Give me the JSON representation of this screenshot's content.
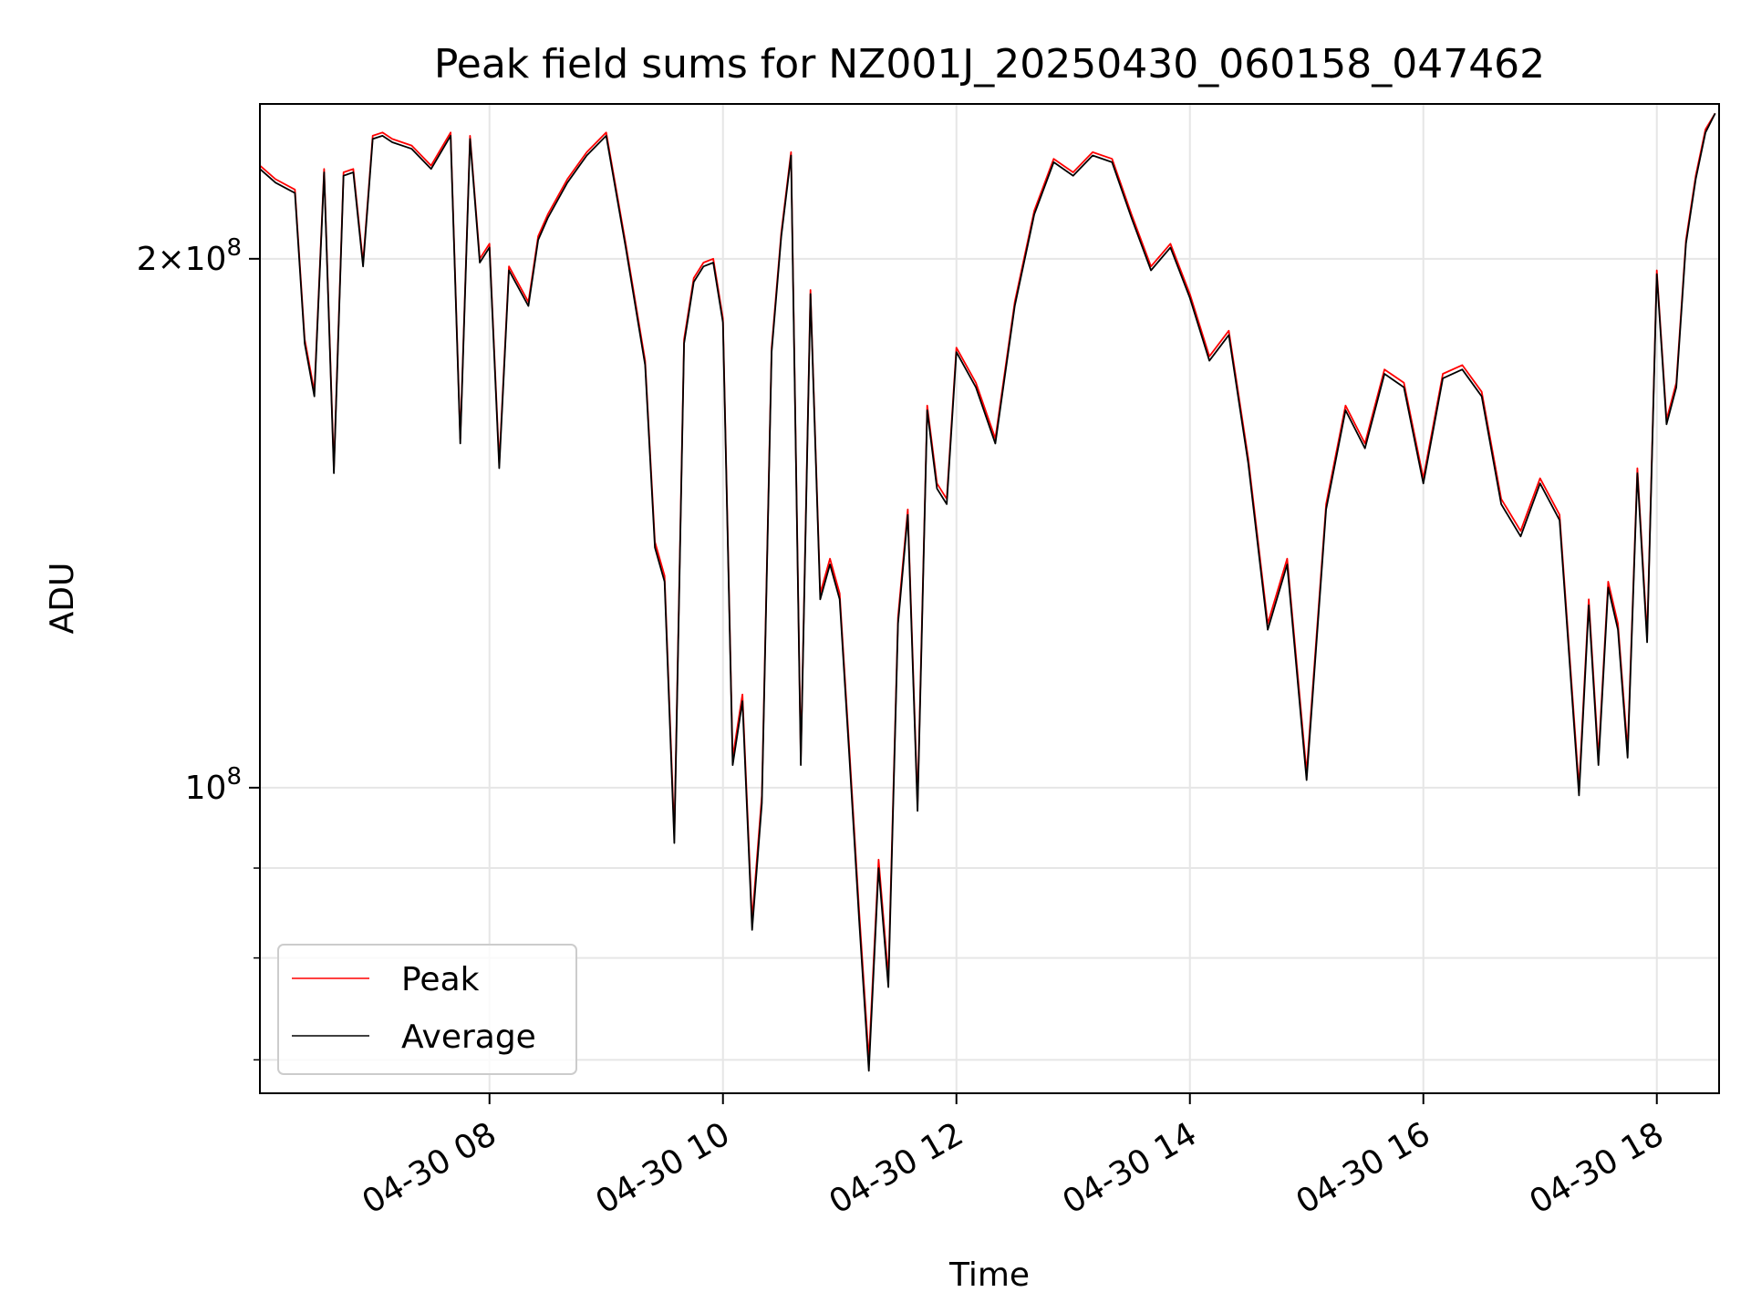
{
  "chart_data": {
    "type": "line",
    "title": "Peak field sums for NZ001J_20250430_060158_047462",
    "xlabel": "Time",
    "ylabel": "ADU",
    "yscale": "log",
    "ylim": [
      67000000,
      245000000
    ],
    "xlim": [
      "04-30 06:02",
      "04-30 18:32"
    ],
    "x_ticks": [
      "04-30 08",
      "04-30 10",
      "04-30 12",
      "04-30 14",
      "04-30 16",
      "04-30 18"
    ],
    "y_ticks": [
      {
        "label_base": "10",
        "label_exp": "8",
        "value": 100000000
      },
      {
        "label_base": "2×10",
        "label_exp": "8",
        "value": 200000000
      }
    ],
    "grid": true,
    "legend": {
      "placement": "lower-left",
      "entries": [
        "Peak",
        "Average"
      ]
    },
    "series": [
      {
        "name": "Peak",
        "color": "#ff0000",
        "x": [
          "04-30 06:02",
          "04-30 06:10",
          "04-30 06:20",
          "04-30 06:25",
          "04-30 06:30",
          "04-30 06:35",
          "04-30 06:40",
          "04-30 06:45",
          "04-30 06:50",
          "04-30 06:55",
          "04-30 07:00",
          "04-30 07:05",
          "04-30 07:10",
          "04-30 07:20",
          "04-30 07:30",
          "04-30 07:40",
          "04-30 07:45",
          "04-30 07:50",
          "04-30 07:55",
          "04-30 08:00",
          "04-30 08:05",
          "04-30 08:10",
          "04-30 08:20",
          "04-30 08:25",
          "04-30 08:30",
          "04-30 08:40",
          "04-30 08:50",
          "04-30 09:00",
          "04-30 09:10",
          "04-30 09:20",
          "04-30 09:25",
          "04-30 09:30",
          "04-30 09:35",
          "04-30 09:40",
          "04-30 09:45",
          "04-30 09:50",
          "04-30 09:55",
          "04-30 10:00",
          "04-30 10:05",
          "04-30 10:10",
          "04-30 10:15",
          "04-30 10:20",
          "04-30 10:25",
          "04-30 10:30",
          "04-30 10:35",
          "04-30 10:40",
          "04-30 10:45",
          "04-30 10:50",
          "04-30 10:55",
          "04-30 11:00",
          "04-30 11:05",
          "04-30 11:10",
          "04-30 11:15",
          "04-30 11:20",
          "04-30 11:25",
          "04-30 11:30",
          "04-30 11:35",
          "04-30 11:40",
          "04-30 11:45",
          "04-30 11:50",
          "04-30 11:55",
          "04-30 12:00",
          "04-30 12:10",
          "04-30 12:20",
          "04-30 12:30",
          "04-30 12:40",
          "04-30 12:50",
          "04-30 13:00",
          "04-30 13:10",
          "04-30 13:20",
          "04-30 13:30",
          "04-30 13:40",
          "04-30 13:50",
          "04-30 14:00",
          "04-30 14:10",
          "04-30 14:20",
          "04-30 14:30",
          "04-30 14:40",
          "04-30 14:50",
          "04-30 15:00",
          "04-30 15:10",
          "04-30 15:20",
          "04-30 15:30",
          "04-30 15:40",
          "04-30 15:50",
          "04-30 16:00",
          "04-30 16:10",
          "04-30 16:20",
          "04-30 16:30",
          "04-30 16:40",
          "04-30 16:50",
          "04-30 17:00",
          "04-30 17:10",
          "04-30 17:20",
          "04-30 17:25",
          "04-30 17:30",
          "04-30 17:35",
          "04-30 17:40",
          "04-30 17:45",
          "04-30 17:50",
          "04-30 17:55",
          "04-30 18:00",
          "04-30 18:05",
          "04-30 18:10",
          "04-30 18:15",
          "04-30 18:20",
          "04-30 18:25",
          "04-30 18:30"
        ],
        "y": [
          226000000,
          222000000,
          219000000,
          180000000,
          168000000,
          225000000,
          152000000,
          224000000,
          225000000,
          199000000,
          235000000,
          236000000,
          234000000,
          232000000,
          226000000,
          236000000,
          158000000,
          235000000,
          200000000,
          204000000,
          153000000,
          198000000,
          189000000,
          206000000,
          212000000,
          222000000,
          230000000,
          236000000,
          204000000,
          175000000,
          138000000,
          132000000,
          94000000,
          180000000,
          195000000,
          199000000,
          200000000,
          185000000,
          104000000,
          113000000,
          84000000,
          99000000,
          178000000,
          207000000,
          230000000,
          104000000,
          192000000,
          129000000,
          135000000,
          129000000,
          105000000,
          85000000,
          70000000,
          91000000,
          78000000,
          125000000,
          144000000,
          98000000,
          165000000,
          149000000,
          146000000,
          178000000,
          170000000,
          158000000,
          189000000,
          213000000,
          228000000,
          224000000,
          230000000,
          228000000,
          212000000,
          198000000,
          204000000,
          191000000,
          176000000,
          182000000,
          154000000,
          124000000,
          135000000,
          102000000,
          145000000,
          165000000,
          157000000,
          173000000,
          170000000,
          150000000,
          172000000,
          174000000,
          168000000,
          146000000,
          140000000,
          150000000,
          143000000,
          100000000,
          128000000,
          104000000,
          131000000,
          124000000,
          105000000,
          152000000,
          122000000,
          197000000,
          162000000,
          170000000,
          205000000,
          223000000,
          237000000,
          242000000
        ]
      },
      {
        "name": "Average",
        "color": "#000000",
        "x": [
          "04-30 06:02",
          "04-30 06:10",
          "04-30 06:20",
          "04-30 06:25",
          "04-30 06:30",
          "04-30 06:35",
          "04-30 06:40",
          "04-30 06:45",
          "04-30 06:50",
          "04-30 06:55",
          "04-30 07:00",
          "04-30 07:05",
          "04-30 07:10",
          "04-30 07:20",
          "04-30 07:30",
          "04-30 07:40",
          "04-30 07:45",
          "04-30 07:50",
          "04-30 07:55",
          "04-30 08:00",
          "04-30 08:05",
          "04-30 08:10",
          "04-30 08:20",
          "04-30 08:25",
          "04-30 08:30",
          "04-30 08:40",
          "04-30 08:50",
          "04-30 09:00",
          "04-30 09:10",
          "04-30 09:20",
          "04-30 09:25",
          "04-30 09:30",
          "04-30 09:35",
          "04-30 09:40",
          "04-30 09:45",
          "04-30 09:50",
          "04-30 09:55",
          "04-30 10:00",
          "04-30 10:05",
          "04-30 10:10",
          "04-30 10:15",
          "04-30 10:20",
          "04-30 10:25",
          "04-30 10:30",
          "04-30 10:35",
          "04-30 10:40",
          "04-30 10:45",
          "04-30 10:50",
          "04-30 10:55",
          "04-30 11:00",
          "04-30 11:05",
          "04-30 11:10",
          "04-30 11:15",
          "04-30 11:20",
          "04-30 11:25",
          "04-30 11:30",
          "04-30 11:35",
          "04-30 11:40",
          "04-30 11:45",
          "04-30 11:50",
          "04-30 11:55",
          "04-30 12:00",
          "04-30 12:10",
          "04-30 12:20",
          "04-30 12:30",
          "04-30 12:40",
          "04-30 12:50",
          "04-30 13:00",
          "04-30 13:10",
          "04-30 13:20",
          "04-30 13:30",
          "04-30 13:40",
          "04-30 13:50",
          "04-30 14:00",
          "04-30 14:10",
          "04-30 14:20",
          "04-30 14:30",
          "04-30 14:40",
          "04-30 14:50",
          "04-30 15:00",
          "04-30 15:10",
          "04-30 15:20",
          "04-30 15:30",
          "04-30 15:40",
          "04-30 15:50",
          "04-30 16:00",
          "04-30 16:10",
          "04-30 16:20",
          "04-30 16:30",
          "04-30 16:40",
          "04-30 16:50",
          "04-30 17:00",
          "04-30 17:10",
          "04-30 17:20",
          "04-30 17:25",
          "04-30 17:30",
          "04-30 17:35",
          "04-30 17:40",
          "04-30 17:45",
          "04-30 17:50",
          "04-30 17:55",
          "04-30 18:00",
          "04-30 18:05",
          "04-30 18:10",
          "04-30 18:15",
          "04-30 18:20",
          "04-30 18:25",
          "04-30 18:30"
        ],
        "y": [
          225000000,
          221000000,
          218000000,
          179000000,
          167000000,
          224000000,
          151000000,
          223000000,
          224000000,
          198000000,
          234000000,
          235000000,
          233000000,
          231000000,
          225000000,
          235000000,
          157000000,
          234000000,
          199000000,
          203000000,
          152000000,
          197000000,
          188000000,
          205000000,
          211000000,
          221000000,
          229000000,
          235000000,
          203000000,
          174000000,
          137000000,
          131000000,
          93000000,
          179000000,
          194000000,
          198000000,
          199000000,
          184000000,
          103000000,
          112000000,
          83000000,
          98000000,
          177000000,
          206000000,
          229000000,
          103000000,
          191000000,
          128000000,
          134000000,
          128000000,
          104000000,
          84000000,
          69000000,
          90000000,
          77000000,
          124000000,
          143000000,
          97000000,
          164000000,
          148000000,
          145000000,
          177000000,
          169000000,
          157000000,
          188000000,
          212000000,
          227000000,
          223000000,
          229000000,
          227000000,
          211000000,
          197000000,
          203000000,
          190000000,
          175000000,
          181000000,
          153000000,
          123000000,
          134000000,
          101000000,
          144000000,
          164000000,
          156000000,
          172000000,
          169000000,
          149000000,
          171000000,
          173000000,
          167000000,
          145000000,
          139000000,
          149000000,
          142000000,
          99000000,
          127000000,
          103000000,
          130000000,
          123000000,
          104000000,
          151000000,
          121000000,
          196000000,
          161000000,
          169000000,
          204000000,
          222000000,
          236000000,
          242000000
        ]
      }
    ]
  }
}
